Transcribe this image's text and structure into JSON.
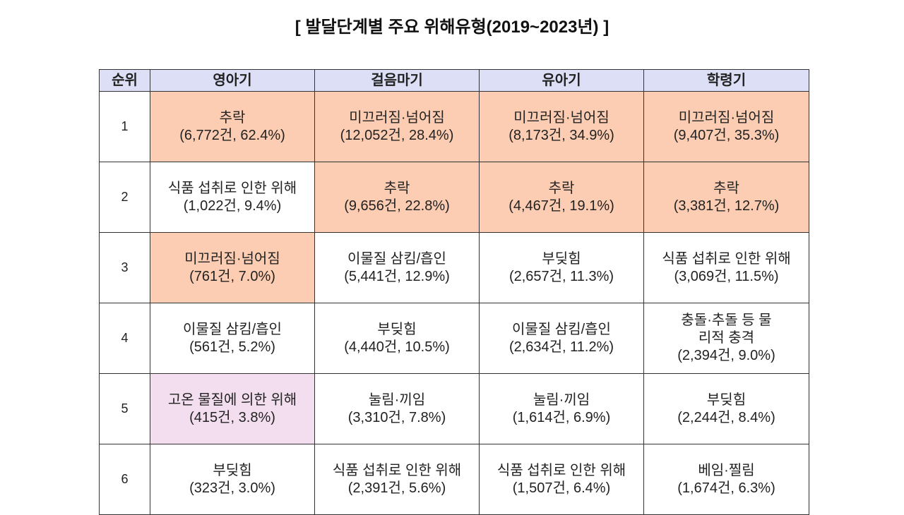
{
  "title": "[ 발달단계별 주요 위해유형(2019~2023년) ]",
  "table": {
    "headers": [
      "순위",
      "영아기",
      "걸음마기",
      "유아기",
      "학령기"
    ],
    "colors": {
      "header": "#dcdff5",
      "orange": "#fccdb2",
      "pink": "#f3deef"
    },
    "rows": [
      {
        "rank": "1",
        "cells": [
          {
            "name": "추락",
            "stat": "(6,772건, 62.4%)",
            "hl": "orange"
          },
          {
            "name": "미끄러짐·넘어짐",
            "stat": "(12,052건, 28.4%)",
            "hl": "orange"
          },
          {
            "name": "미끄러짐·넘어짐",
            "stat": "(8,173건, 34.9%)",
            "hl": "orange"
          },
          {
            "name": "미끄러짐·넘어짐",
            "stat": "(9,407건, 35.3%)",
            "hl": "orange"
          }
        ]
      },
      {
        "rank": "2",
        "cells": [
          {
            "name": "식품 섭취로 인한 위해",
            "stat": "(1,022건, 9.4%)",
            "hl": ""
          },
          {
            "name": "추락",
            "stat": "(9,656건, 22.8%)",
            "hl": "orange"
          },
          {
            "name": "추락",
            "stat": "(4,467건, 19.1%)",
            "hl": "orange"
          },
          {
            "name": "추락",
            "stat": "(3,381건, 12.7%)",
            "hl": "orange"
          }
        ]
      },
      {
        "rank": "3",
        "cells": [
          {
            "name": "미끄러짐·넘어짐",
            "stat": "(761건, 7.0%)",
            "hl": "orange"
          },
          {
            "name": "이물질 삼킴/흡인",
            "stat": "(5,441건, 12.9%)",
            "hl": ""
          },
          {
            "name": "부딪힘",
            "stat": "(2,657건, 11.3%)",
            "hl": ""
          },
          {
            "name": "식품 섭취로 인한 위해",
            "stat": "(3,069건, 11.5%)",
            "hl": ""
          }
        ]
      },
      {
        "rank": "4",
        "cells": [
          {
            "name": "이물질 삼킴/흡인",
            "stat": "(561건, 5.2%)",
            "hl": ""
          },
          {
            "name": "부딪힘",
            "stat": "(4,440건, 10.5%)",
            "hl": ""
          },
          {
            "name": "이물질 삼킴/흡인",
            "stat": "(2,634건, 11.2%)",
            "hl": ""
          },
          {
            "name": "충돌·추돌 등 물리적 충격",
            "stat": "(2,394건, 9.0%)",
            "hl": ""
          }
        ]
      },
      {
        "rank": "5",
        "cells": [
          {
            "name": "고온 물질에 의한 위해",
            "stat": "(415건, 3.8%)",
            "hl": "pink"
          },
          {
            "name": "눌림·끼임",
            "stat": "(3,310건, 7.8%)",
            "hl": ""
          },
          {
            "name": "눌림·끼임",
            "stat": "(1,614건, 6.9%)",
            "hl": ""
          },
          {
            "name": "부딪힘",
            "stat": "(2,244건, 8.4%)",
            "hl": ""
          }
        ]
      },
      {
        "rank": "6",
        "cells": [
          {
            "name": "부딪힘",
            "stat": "(323건, 3.0%)",
            "hl": ""
          },
          {
            "name": "식품 섭취로 인한 위해",
            "stat": "(2,391건, 5.6%)",
            "hl": ""
          },
          {
            "name": "식품 섭취로 인한 위해",
            "stat": "(1,507건, 6.4%)",
            "hl": ""
          },
          {
            "name": "베임·찔림",
            "stat": "(1,674건, 6.3%)",
            "hl": ""
          }
        ]
      }
    ]
  }
}
